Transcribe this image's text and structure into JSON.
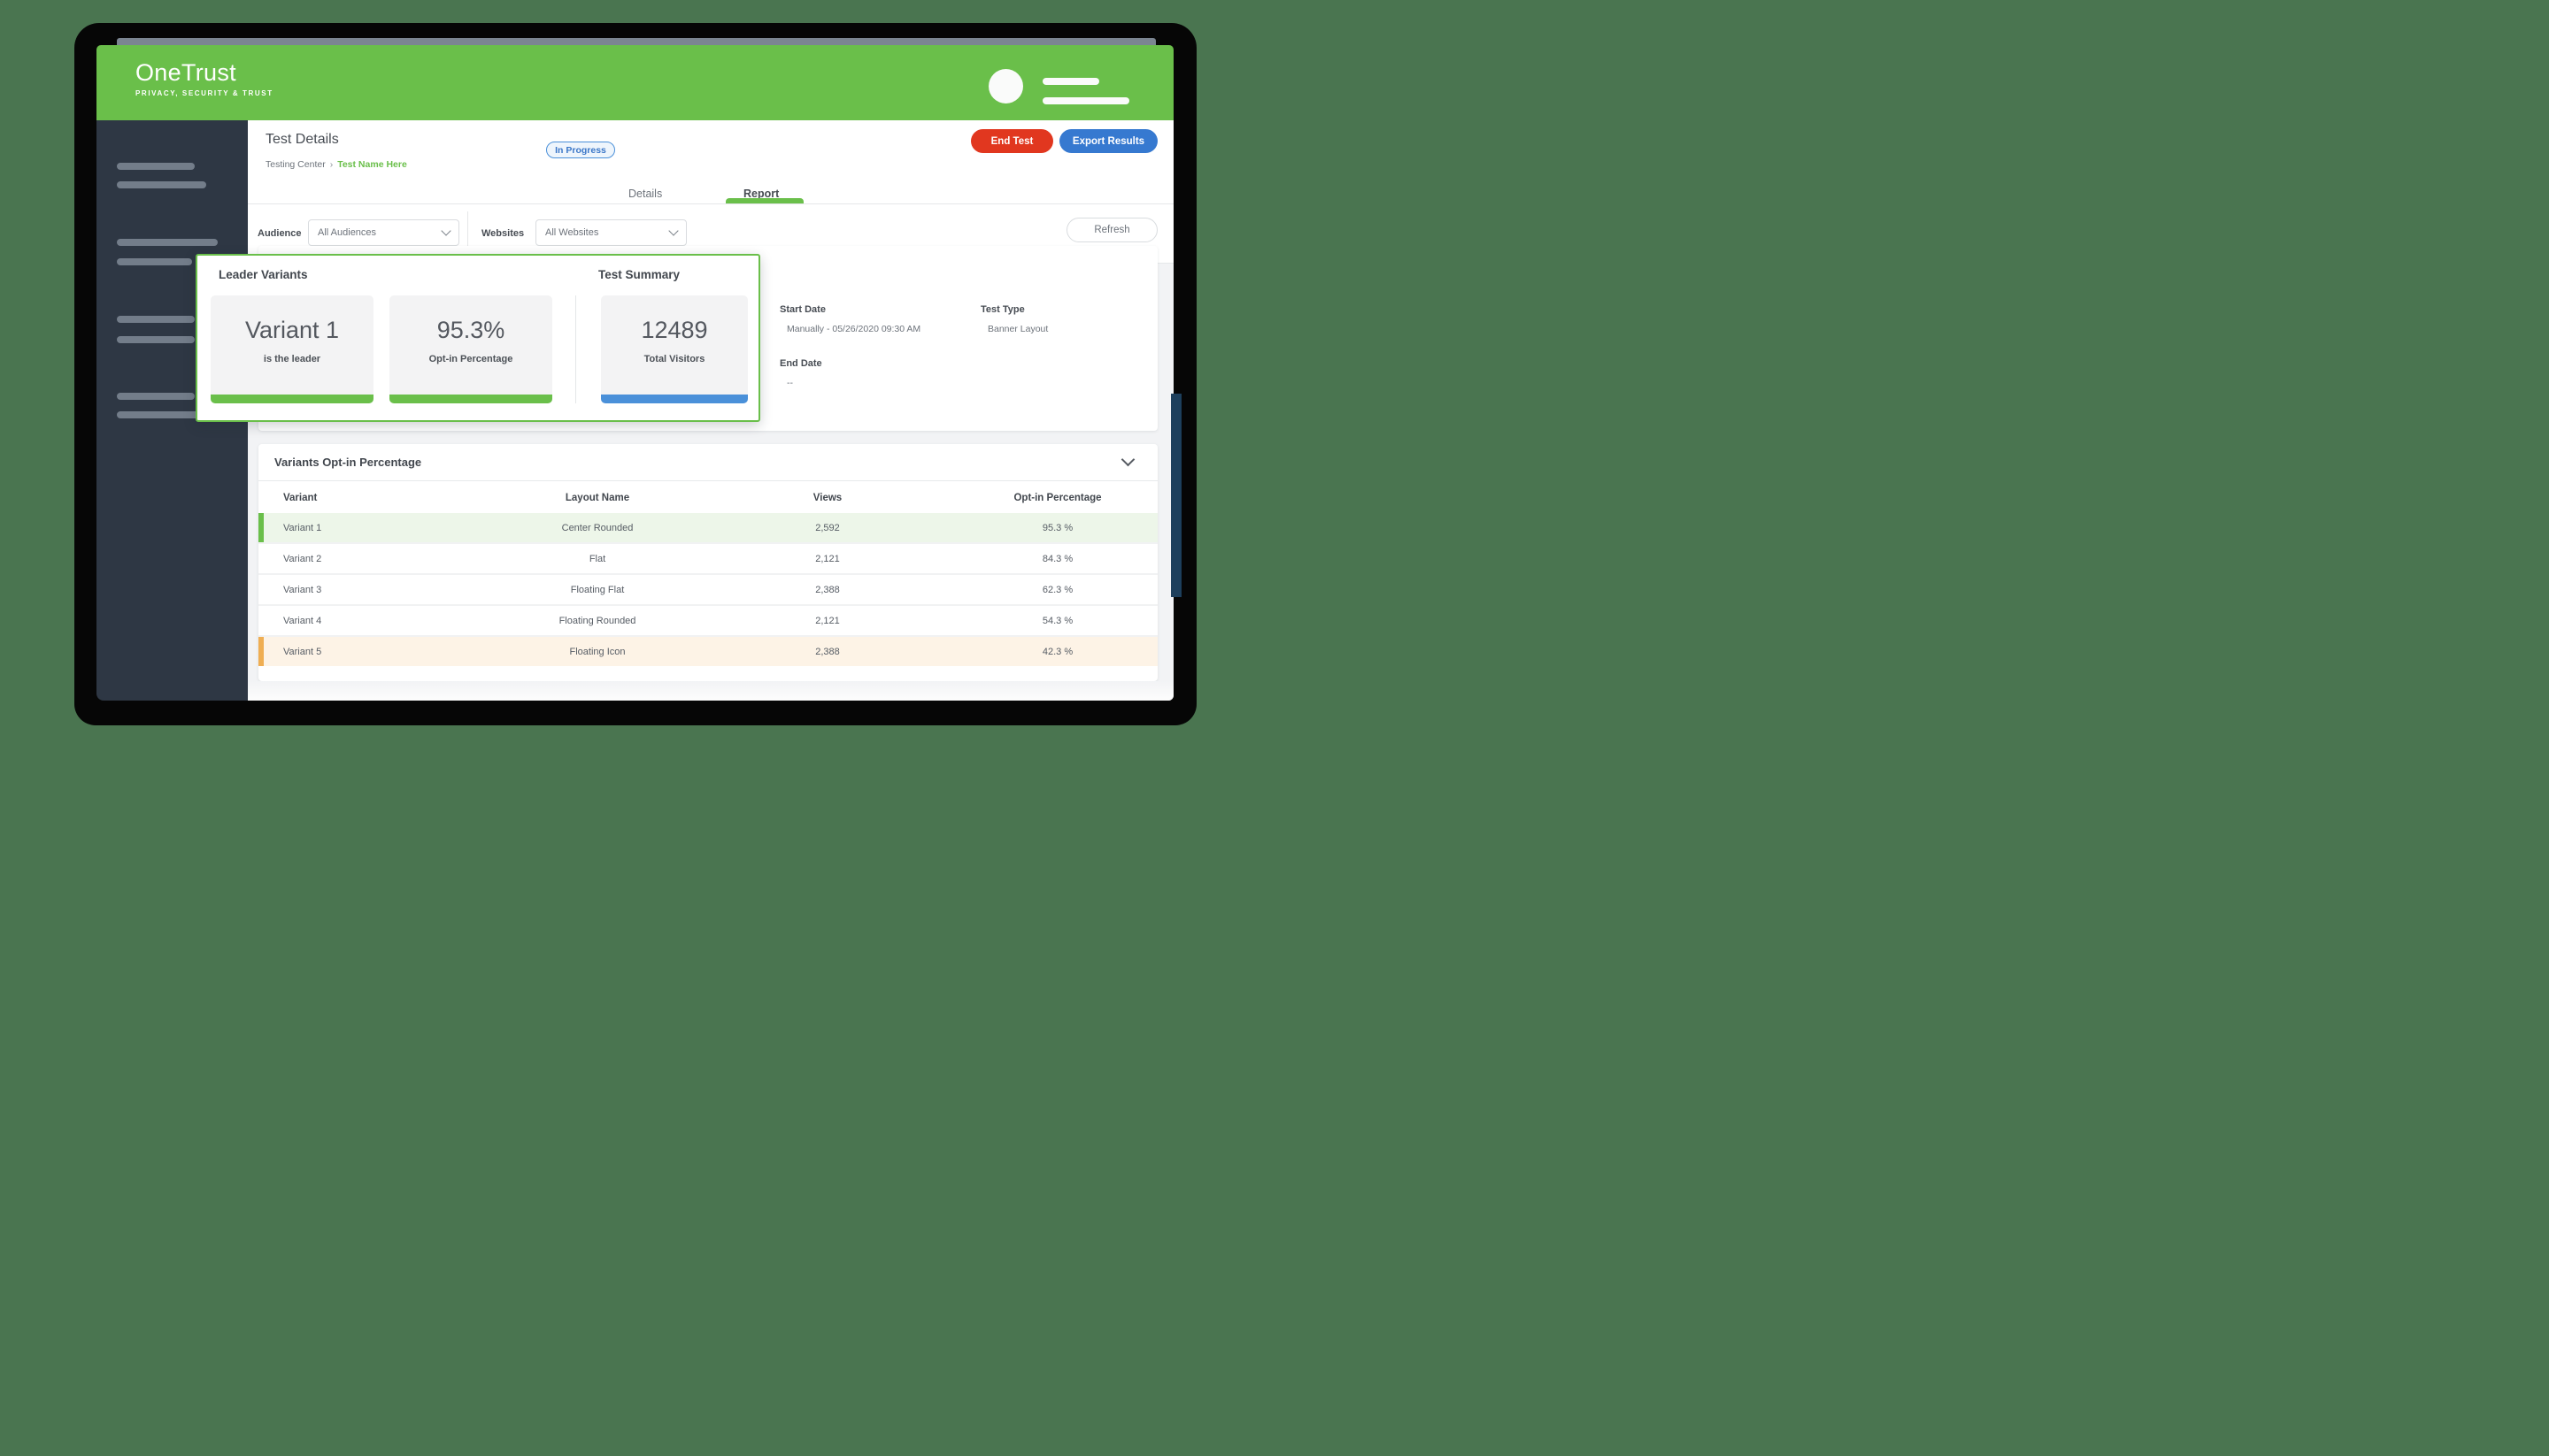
{
  "brand": {
    "name": "OneTrust",
    "tagline": "PRIVACY, SECURITY & TRUST"
  },
  "page_header": {
    "title": "Test Details",
    "breadcrumb": {
      "parent": "Testing Center",
      "separator": "›",
      "current": "Test Name Here"
    },
    "status_badge": "In Progress",
    "end_test_label": "End Test",
    "export_results_label": "Export Results"
  },
  "tabs": {
    "details": "Details",
    "report": "Report"
  },
  "filters": {
    "audience_label": "Audience",
    "audience_value": "All Audiences",
    "websites_label": "Websites",
    "websites_value": "All Websites",
    "refresh_label": "Refresh"
  },
  "leader_card": {
    "title": "Leader Variants",
    "summary_title": "Test Summary",
    "stats": [
      {
        "value": "Variant 1",
        "label": "is the leader",
        "accent": "#6abf4a"
      },
      {
        "value": "95.3%",
        "label": "Opt-in Percentage",
        "accent": "#6abf4a"
      },
      {
        "value": "12489",
        "label": "Total Visitors",
        "accent": "#4a90d9"
      }
    ]
  },
  "summary_panel": {
    "start_date_label": "Start Date",
    "start_date_value": "Manually - 05/26/2020 09:30 AM",
    "test_type_label": "Test Type",
    "test_type_value": "Banner Layout",
    "end_date_label": "End Date",
    "end_date_value": "--"
  },
  "variants_table": {
    "title": "Variants Opt-in Percentage",
    "columns": [
      "Variant",
      "Layout Name",
      "Views",
      "Opt-in Percentage"
    ],
    "rows": [
      {
        "variant": "Variant 1",
        "layout": "Center Rounded",
        "views": "2,592",
        "optin": "95.3 %",
        "highlight": "green"
      },
      {
        "variant": "Variant 2",
        "layout": "Flat",
        "views": "2,121",
        "optin": "84.3 %",
        "highlight": ""
      },
      {
        "variant": "Variant 3",
        "layout": "Floating Flat",
        "views": "2,388",
        "optin": "62.3 %",
        "highlight": ""
      },
      {
        "variant": "Variant 4",
        "layout": "Floating Rounded",
        "views": "2,121",
        "optin": "54.3 %",
        "highlight": ""
      },
      {
        "variant": "Variant 5",
        "layout": "Floating Icon",
        "views": "2,388",
        "optin": "42.3 %",
        "highlight": "orange"
      }
    ]
  },
  "colors": {
    "brand_green": "#6abf4a",
    "accent_blue": "#4a90d9",
    "danger_red": "#e1371f",
    "button_blue": "#3679d0",
    "sidebar_dark": "#2e3744",
    "backdrop_green": "#4a7550"
  }
}
